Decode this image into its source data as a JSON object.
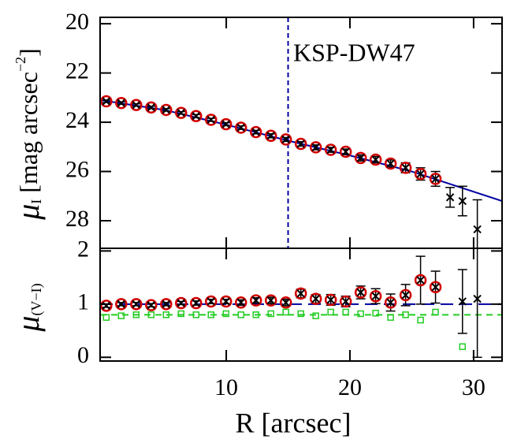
{
  "chart_data": [
    {
      "type": "scatter",
      "annotation": "KSP-DW47",
      "ylabel": {
        "symbol": "μ",
        "sub": "I",
        "rest": " [mag arcsec",
        "sup": "−2",
        "close": "]"
      },
      "xlim": [
        -0.2,
        32.3
      ],
      "ylim": [
        29.12,
        19.74
      ],
      "yticks": [
        20,
        22,
        24,
        26,
        28
      ],
      "x": [
        0.3,
        1.51,
        2.72,
        3.93,
        5.14,
        6.35,
        7.56,
        8.77,
        9.98,
        11.19,
        12.4,
        13.61,
        14.82,
        16.03,
        17.24,
        18.45,
        19.66,
        20.87,
        22.08,
        23.29,
        24.5,
        25.71,
        26.92
      ],
      "values": [
        23.15,
        23.22,
        23.3,
        23.4,
        23.5,
        23.62,
        23.75,
        23.9,
        24.08,
        24.22,
        24.4,
        24.55,
        24.7,
        24.88,
        25.02,
        25.12,
        25.2,
        25.45,
        25.52,
        25.68,
        25.85,
        26.1,
        26.3
      ],
      "errors": [
        0.05,
        0.05,
        0.05,
        0.05,
        0.05,
        0.05,
        0.06,
        0.06,
        0.06,
        0.07,
        0.07,
        0.08,
        0.08,
        0.09,
        0.1,
        0.1,
        0.11,
        0.12,
        0.13,
        0.15,
        0.2,
        0.25,
        0.3
      ],
      "color": "#d40000",
      "extra": {
        "x": [
          28.1,
          29.1,
          30.3
        ],
        "values": [
          27.05,
          27.2,
          28.35
        ],
        "errors": [
          0.4,
          0.6,
          1.2
        ]
      },
      "model": {
        "x": [
          -0.2,
          5,
          10,
          15,
          20,
          25,
          32.3
        ],
        "values": [
          23.1,
          23.5,
          24.1,
          24.75,
          25.35,
          26.0,
          27.2
        ],
        "color": "#0000a0"
      },
      "vline": 15
    },
    {
      "type": "scatter",
      "ylabel": {
        "symbol": "μ",
        "sub": "(V−I)"
      },
      "xlabel": "R [arcsec]",
      "xlim": [
        -0.2,
        32.3
      ],
      "ylim": [
        -0.07,
        2.05
      ],
      "xticks": [
        10,
        20,
        30
      ],
      "yticks": [
        0,
        1,
        2
      ],
      "x": [
        0.3,
        1.51,
        2.72,
        3.93,
        5.14,
        6.35,
        7.56,
        8.77,
        9.98,
        11.19,
        12.4,
        13.61,
        14.82,
        16.03,
        17.24,
        18.45,
        19.66,
        20.87,
        22.08,
        23.29,
        24.5,
        25.71,
        26.92
      ],
      "values": [
        0.97,
        1.0,
        1.0,
        0.98,
        1.0,
        1.02,
        1.02,
        1.05,
        1.05,
        1.03,
        1.07,
        1.07,
        1.03,
        1.2,
        1.1,
        1.08,
        1.05,
        1.22,
        1.15,
        1.03,
        1.17,
        1.45,
        1.32
      ],
      "errors": [
        0.03,
        0.03,
        0.03,
        0.03,
        0.03,
        0.03,
        0.04,
        0.04,
        0.04,
        0.05,
        0.05,
        0.06,
        0.06,
        0.08,
        0.08,
        0.1,
        0.1,
        0.12,
        0.14,
        0.16,
        0.2,
        0.45,
        0.3
      ],
      "color": "#d40000",
      "extra": {
        "x": [
          29.1,
          30.3
        ],
        "values": [
          1.05,
          1.1
        ],
        "errors": [
          0.6,
          1.1
        ]
      },
      "green": {
        "x": [
          0.3,
          1.51,
          2.72,
          3.93,
          5.14,
          6.35,
          7.56,
          8.77,
          9.98,
          11.19,
          12.4,
          13.61,
          14.82,
          16.03,
          17.24,
          18.45,
          19.66,
          20.87,
          22.08,
          23.29,
          24.5,
          25.71,
          26.92,
          29.1
        ],
        "values": [
          0.75,
          0.78,
          0.8,
          0.8,
          0.8,
          0.82,
          0.8,
          0.8,
          0.82,
          0.8,
          0.8,
          0.82,
          0.85,
          0.82,
          0.78,
          0.85,
          0.85,
          0.82,
          0.83,
          0.75,
          0.8,
          0.7,
          0.85,
          0.2
        ],
        "color": "#22cc22"
      },
      "hlines": [
        {
          "value": 1,
          "color": "#0000a0"
        },
        {
          "value": 0.8,
          "color": "#22cc22"
        }
      ]
    }
  ]
}
